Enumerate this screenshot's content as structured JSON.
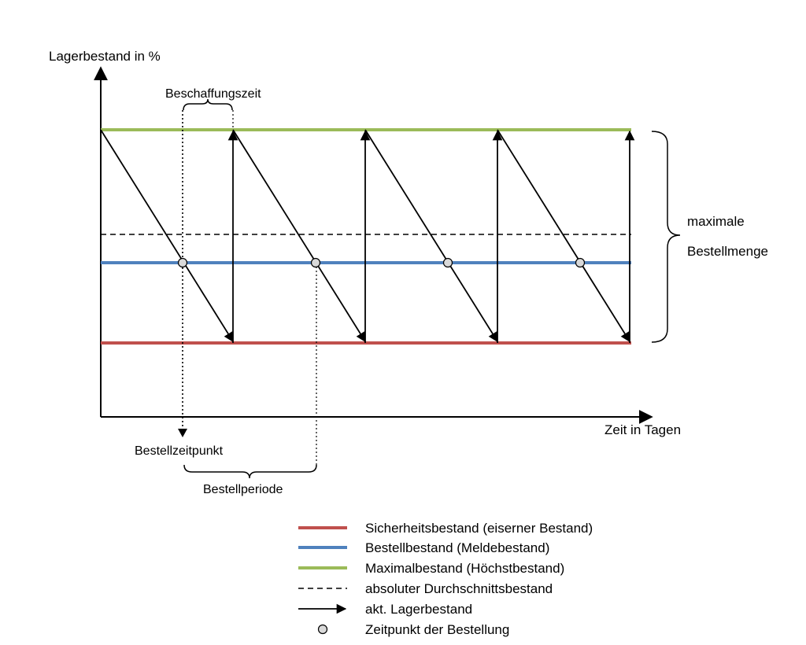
{
  "axes": {
    "y_label": "Lagerbestand in %",
    "x_label": "Zeit in Tagen"
  },
  "annotations": {
    "beschaffungszeit": "Beschaffungszeit",
    "bestellzeitpunkt": "Bestellzeitpunkt",
    "bestellperiode": "Bestellperiode",
    "max_menge_line1": "maximale",
    "max_menge_line2": "Bestellmenge"
  },
  "colors": {
    "safety": "#c0504d",
    "reorder": "#4f81bd",
    "maximum": "#9bbb59",
    "ink": "#000000",
    "marker_fill": "#d9d9d9"
  },
  "legend": [
    {
      "type": "red-line",
      "label": "Sicherheitsbestand (eiserner Bestand)"
    },
    {
      "type": "blue-line",
      "label": "Bestellbestand (Meldebestand)"
    },
    {
      "type": "green-line",
      "label": "Maximalbestand (Höchstbestand)"
    },
    {
      "type": "dashed-line",
      "label": "absoluter Durchschnittsbestand"
    },
    {
      "type": "arrow",
      "label": "akt. Lagerbestand"
    },
    {
      "type": "circle",
      "label": "Zeitpunkt der Bestellung"
    }
  ]
}
